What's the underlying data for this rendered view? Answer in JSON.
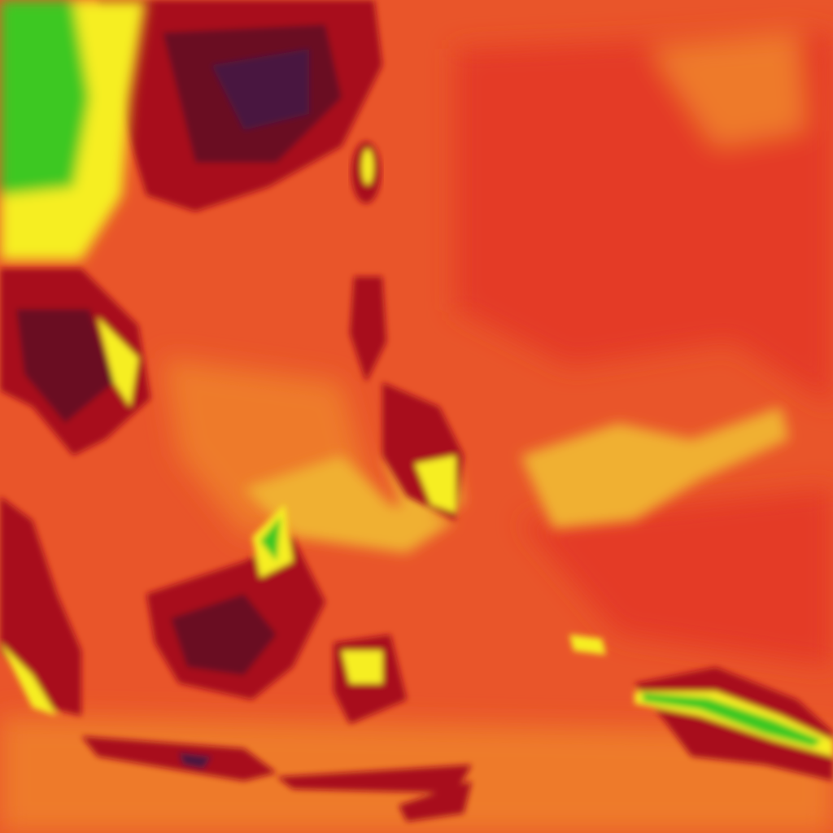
{
  "map": {
    "type": "false-color thermal heatmap",
    "palette": {
      "ocean_warm": "#e9552a",
      "ocean_hot": "#e43a25",
      "ocean_light": "#ee7a2c",
      "cloud_yellow": "#f0b030",
      "land_dark": "#a80f1a",
      "land_darkest": "#6a0a20",
      "land_core": "#4a1640",
      "cold_yellow": "#f6ee20",
      "cold_green": "#3cc820"
    }
  }
}
